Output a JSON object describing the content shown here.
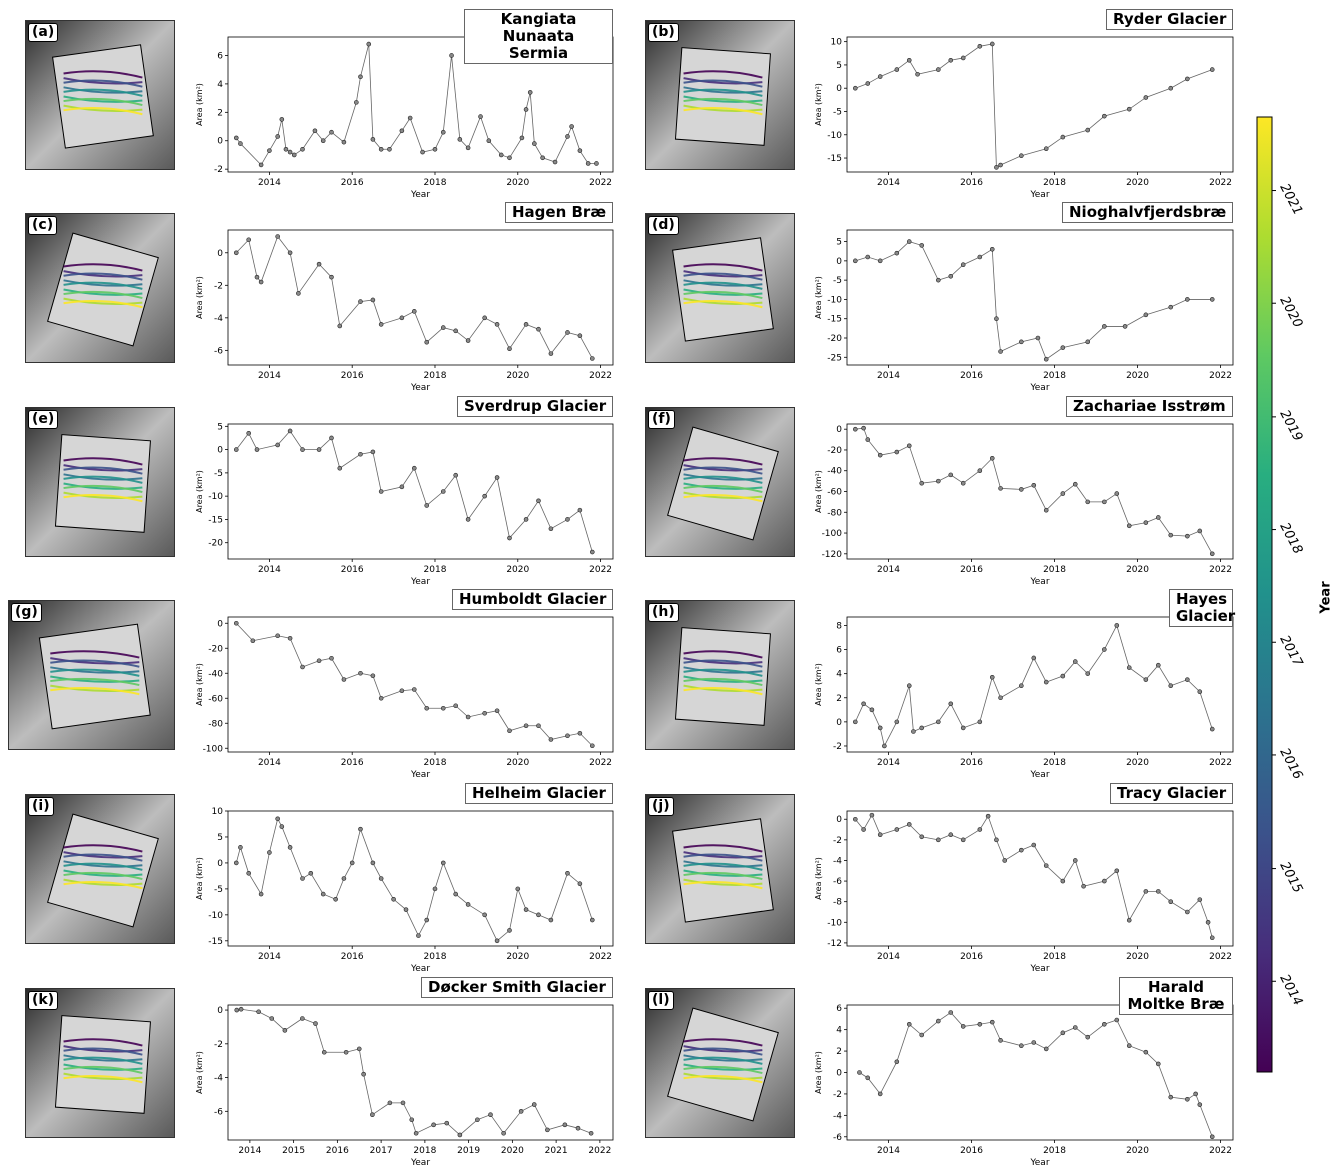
{
  "colorbar": {
    "label": "Year",
    "ticks": [
      "2014",
      "2015",
      "2016",
      "2017",
      "2018",
      "2019",
      "2020",
      "2021"
    ],
    "colors": [
      "#440154",
      "#472d7b",
      "#3b528b",
      "#2c728e",
      "#21918c",
      "#28ae80",
      "#5ec962",
      "#addc30",
      "#fde725"
    ]
  },
  "common": {
    "xlabel": "Year",
    "ylabel": "Area (km²)"
  },
  "chart_data": [
    {
      "letter": "(a)",
      "title": "Kangiata Nunaata Sermia",
      "type": "line",
      "xlim": [
        2013.0,
        2022.3
      ],
      "ylim": [
        -2.2,
        7.3
      ],
      "yticks": [
        -2,
        0,
        2,
        4,
        6
      ],
      "xticks": [
        2014,
        2016,
        2018,
        2020,
        2022
      ],
      "x": [
        2013.2,
        2013.3,
        2013.8,
        2014.0,
        2014.2,
        2014.3,
        2014.4,
        2014.5,
        2014.6,
        2014.8,
        2015.1,
        2015.3,
        2015.5,
        2015.8,
        2016.1,
        2016.2,
        2016.4,
        2016.5,
        2016.7,
        2016.9,
        2017.2,
        2017.4,
        2017.7,
        2018.0,
        2018.2,
        2018.4,
        2018.6,
        2018.8,
        2019.1,
        2019.3,
        2019.6,
        2019.8,
        2020.1,
        2020.2,
        2020.3,
        2020.4,
        2020.6,
        2020.9,
        2021.2,
        2021.3,
        2021.5,
        2021.7,
        2021.9
      ],
      "y": [
        0.2,
        -0.2,
        -1.7,
        -0.7,
        0.3,
        1.5,
        -0.6,
        -0.8,
        -1.0,
        -0.6,
        0.7,
        0.0,
        0.6,
        -0.1,
        2.7,
        4.5,
        6.8,
        0.1,
        -0.6,
        -0.6,
        0.7,
        1.6,
        -0.8,
        -0.6,
        0.6,
        6.0,
        0.1,
        -0.5,
        1.7,
        0.0,
        -1.0,
        -1.2,
        0.2,
        2.2,
        3.4,
        -0.2,
        -1.2,
        -1.5,
        0.3,
        1.0,
        -0.7,
        -1.6,
        -1.6
      ]
    },
    {
      "letter": "(b)",
      "title": "Ryder Glacier",
      "type": "line",
      "xlim": [
        2013.0,
        2022.3
      ],
      "ylim": [
        -18,
        11
      ],
      "yticks": [
        -15,
        -10,
        -5,
        0,
        5,
        10
      ],
      "xticks": [
        2014,
        2016,
        2018,
        2020,
        2022
      ],
      "x": [
        2013.2,
        2013.5,
        2013.8,
        2014.2,
        2014.5,
        2014.7,
        2015.2,
        2015.5,
        2015.8,
        2016.2,
        2016.5,
        2016.6,
        2016.7,
        2017.2,
        2017.8,
        2018.2,
        2018.8,
        2019.2,
        2019.8,
        2020.2,
        2020.8,
        2021.2,
        2021.8
      ],
      "y": [
        0,
        1,
        2.5,
        4,
        6,
        3,
        4,
        6,
        6.5,
        9,
        9.5,
        -17,
        -16.5,
        -14.5,
        -13,
        -10.5,
        -9,
        -6,
        -4.5,
        -2,
        0,
        2,
        4
      ]
    },
    {
      "letter": "(c)",
      "title": "Hagen Bræ",
      "type": "line",
      "xlim": [
        2013.0,
        2022.3
      ],
      "ylim": [
        -6.9,
        1.4
      ],
      "yticks": [
        -6,
        -4,
        -2,
        0
      ],
      "xticks": [
        2014,
        2016,
        2018,
        2020,
        2022
      ],
      "x": [
        2013.2,
        2013.5,
        2013.7,
        2013.8,
        2014.2,
        2014.5,
        2014.7,
        2015.2,
        2015.5,
        2015.7,
        2016.2,
        2016.5,
        2016.7,
        2017.2,
        2017.5,
        2017.8,
        2018.2,
        2018.5,
        2018.8,
        2019.2,
        2019.5,
        2019.8,
        2020.2,
        2020.5,
        2020.8,
        2021.2,
        2021.5,
        2021.8
      ],
      "y": [
        0,
        0.8,
        -1.5,
        -1.8,
        1,
        0,
        -2.5,
        -0.7,
        -1.5,
        -4.5,
        -3,
        -2.9,
        -4.4,
        -4.0,
        -3.6,
        -5.5,
        -4.6,
        -4.8,
        -5.4,
        -4.0,
        -4.4,
        -5.9,
        -4.4,
        -4.7,
        -6.2,
        -4.9,
        -5.1,
        -6.5
      ]
    },
    {
      "letter": "(d)",
      "title": "Nioghalvfjerdsbræ",
      "type": "line",
      "xlim": [
        2013.0,
        2022.3
      ],
      "ylim": [
        -27,
        8
      ],
      "yticks": [
        -25,
        -20,
        -15,
        -10,
        -5,
        0,
        5
      ],
      "xticks": [
        2014,
        2016,
        2018,
        2020,
        2022
      ],
      "x": [
        2013.2,
        2013.5,
        2013.8,
        2014.2,
        2014.5,
        2014.8,
        2015.2,
        2015.5,
        2015.8,
        2016.2,
        2016.5,
        2016.6,
        2016.7,
        2017.2,
        2017.6,
        2017.8,
        2018.2,
        2018.8,
        2019.2,
        2019.7,
        2020.2,
        2020.8,
        2021.2,
        2021.8
      ],
      "y": [
        0,
        1,
        0,
        2,
        5,
        4,
        -5,
        -4,
        -1,
        1,
        3,
        -15,
        -23.5,
        -21,
        -20,
        -25.5,
        -22.5,
        -21,
        -17,
        -17,
        -14,
        -12,
        -10,
        -10
      ]
    },
    {
      "letter": "(e)",
      "title": "Sverdrup Glacier",
      "type": "line",
      "xlim": [
        2013.0,
        2022.3
      ],
      "ylim": [
        -23.5,
        5.5
      ],
      "yticks": [
        -20,
        -15,
        -10,
        -5,
        0,
        5
      ],
      "xticks": [
        2014,
        2016,
        2018,
        2020,
        2022
      ],
      "x": [
        2013.2,
        2013.5,
        2013.7,
        2014.2,
        2014.5,
        2014.8,
        2015.2,
        2015.5,
        2015.7,
        2016.2,
        2016.5,
        2016.7,
        2017.2,
        2017.5,
        2017.8,
        2018.2,
        2018.5,
        2018.8,
        2019.2,
        2019.5,
        2019.8,
        2020.2,
        2020.5,
        2020.8,
        2021.2,
        2021.5,
        2021.8
      ],
      "y": [
        0,
        3.5,
        0,
        1,
        4,
        0,
        0,
        2.5,
        -4,
        -1,
        -0.5,
        -9,
        -8,
        -4,
        -12,
        -9,
        -5.5,
        -15,
        -10,
        -6,
        -19,
        -15,
        -11,
        -17,
        -15,
        -13,
        -22
      ]
    },
    {
      "letter": "(f)",
      "title": "Zachariae Isstrøm",
      "type": "line",
      "xlim": [
        2013.0,
        2022.3
      ],
      "ylim": [
        -125,
        5
      ],
      "yticks": [
        -120,
        -100,
        -80,
        -60,
        -40,
        -20,
        0
      ],
      "xticks": [
        2014,
        2016,
        2018,
        2020,
        2022
      ],
      "x": [
        2013.2,
        2013.4,
        2013.5,
        2013.8,
        2014.2,
        2014.5,
        2014.8,
        2015.2,
        2015.5,
        2015.8,
        2016.2,
        2016.5,
        2016.7,
        2017.2,
        2017.5,
        2017.8,
        2018.2,
        2018.5,
        2018.8,
        2019.2,
        2019.5,
        2019.8,
        2020.2,
        2020.5,
        2020.8,
        2021.2,
        2021.5,
        2021.8
      ],
      "y": [
        0,
        1,
        -10,
        -25,
        -22,
        -16,
        -52,
        -50,
        -44,
        -52,
        -40,
        -28,
        -57,
        -58,
        -54,
        -78,
        -62,
        -53,
        -70,
        -70,
        -62,
        -93,
        -90,
        -85,
        -102,
        -103,
        -98,
        -120
      ]
    },
    {
      "letter": "(g)",
      "title": "Humboldt Glacier",
      "type": "line",
      "xlim": [
        2013.0,
        2022.3
      ],
      "ylim": [
        -103,
        5
      ],
      "yticks": [
        -100,
        -80,
        -60,
        -40,
        -20,
        0
      ],
      "xticks": [
        2014,
        2016,
        2018,
        2020,
        2022
      ],
      "x": [
        2013.2,
        2013.6,
        2014.2,
        2014.5,
        2014.8,
        2015.2,
        2015.5,
        2015.8,
        2016.2,
        2016.5,
        2016.7,
        2017.2,
        2017.5,
        2017.8,
        2018.2,
        2018.5,
        2018.8,
        2019.2,
        2019.5,
        2019.8,
        2020.2,
        2020.5,
        2020.8,
        2021.2,
        2021.5,
        2021.8
      ],
      "y": [
        0,
        -14,
        -10,
        -12,
        -35,
        -30,
        -28,
        -45,
        -40,
        -42,
        -60,
        -54,
        -53,
        -68,
        -68,
        -66,
        -75,
        -72,
        -70,
        -86,
        -82,
        -82,
        -93,
        -90,
        -88,
        -98
      ]
    },
    {
      "letter": "(h)",
      "title": "Hayes Glacier",
      "type": "line",
      "xlim": [
        2013.0,
        2022.3
      ],
      "ylim": [
        -2.5,
        8.7
      ],
      "yticks": [
        -2,
        0,
        2,
        4,
        6,
        8
      ],
      "xticks": [
        2014,
        2016,
        2018,
        2020,
        2022
      ],
      "x": [
        2013.2,
        2013.4,
        2013.6,
        2013.8,
        2013.9,
        2014.2,
        2014.5,
        2014.6,
        2014.8,
        2015.2,
        2015.5,
        2015.8,
        2016.2,
        2016.5,
        2016.7,
        2017.2,
        2017.5,
        2017.8,
        2018.2,
        2018.5,
        2018.8,
        2019.2,
        2019.5,
        2019.8,
        2020.2,
        2020.5,
        2020.8,
        2021.2,
        2021.5,
        2021.8
      ],
      "y": [
        0,
        1.5,
        1,
        -0.5,
        -2,
        0,
        3,
        -0.8,
        -0.5,
        0,
        1.5,
        -0.5,
        0,
        3.7,
        2,
        3,
        5.3,
        3.3,
        3.8,
        5,
        4,
        6,
        8,
        4.5,
        3.5,
        4.7,
        3,
        3.5,
        2.5,
        -0.6
      ]
    },
    {
      "letter": "(i)",
      "title": "Helheim Glacier",
      "type": "line",
      "xlim": [
        2013.0,
        2022.3
      ],
      "ylim": [
        -16,
        10
      ],
      "yticks": [
        -15,
        -10,
        -5,
        0,
        5,
        10
      ],
      "xticks": [
        2014,
        2016,
        2018,
        2020,
        2022
      ],
      "x": [
        2013.2,
        2013.3,
        2013.5,
        2013.8,
        2014.0,
        2014.2,
        2014.3,
        2014.5,
        2014.8,
        2015.0,
        2015.3,
        2015.6,
        2015.8,
        2016.0,
        2016.2,
        2016.5,
        2016.7,
        2017.0,
        2017.3,
        2017.6,
        2017.8,
        2018.0,
        2018.2,
        2018.5,
        2018.8,
        2019.2,
        2019.5,
        2019.8,
        2020.0,
        2020.2,
        2020.5,
        2020.8,
        2021.2,
        2021.5,
        2021.8
      ],
      "y": [
        0,
        3,
        -2,
        -6,
        2,
        8.5,
        7,
        3,
        -3,
        -2,
        -6,
        -7,
        -3,
        0,
        6.5,
        0,
        -3,
        -7,
        -9,
        -14,
        -11,
        -5,
        0,
        -6,
        -8,
        -10,
        -15,
        -13,
        -5,
        -9,
        -10,
        -11,
        -2,
        -4,
        -11
      ]
    },
    {
      "letter": "(j)",
      "title": "Tracy Glacier",
      "type": "line",
      "xlim": [
        2013.0,
        2022.3
      ],
      "ylim": [
        -12.3,
        0.8
      ],
      "yticks": [
        -12,
        -10,
        -8,
        -6,
        -4,
        -2,
        0
      ],
      "xticks": [
        2014,
        2016,
        2018,
        2020,
        2022
      ],
      "x": [
        2013.2,
        2013.4,
        2013.6,
        2013.8,
        2014.2,
        2014.5,
        2014.8,
        2015.2,
        2015.5,
        2015.8,
        2016.2,
        2016.4,
        2016.6,
        2016.8,
        2017.2,
        2017.5,
        2017.8,
        2018.2,
        2018.5,
        2018.7,
        2019.2,
        2019.5,
        2019.8,
        2020.2,
        2020.5,
        2020.8,
        2021.2,
        2021.5,
        2021.7,
        2021.8
      ],
      "y": [
        0,
        -1,
        0.4,
        -1.5,
        -1,
        -0.5,
        -1.7,
        -2,
        -1.5,
        -2,
        -1,
        0.3,
        -2,
        -4,
        -3,
        -2.5,
        -4.5,
        -6,
        -4,
        -6.5,
        -6,
        -5,
        -9.8,
        -7,
        -7,
        -8,
        -9,
        -7.8,
        -10,
        -11.5
      ]
    },
    {
      "letter": "(k)",
      "title": "Døcker Smith Glacier",
      "type": "line",
      "xlim": [
        2013.5,
        2022.3
      ],
      "ylim": [
        -7.7,
        0.3
      ],
      "yticks": [
        -6,
        -4,
        -2,
        0
      ],
      "xticks": [
        2014,
        2015,
        2016,
        2017,
        2018,
        2019,
        2020,
        2021,
        2022
      ],
      "x": [
        2013.7,
        2013.8,
        2014.2,
        2014.5,
        2014.8,
        2015.2,
        2015.5,
        2015.7,
        2016.2,
        2016.5,
        2016.6,
        2016.8,
        2017.2,
        2017.5,
        2017.7,
        2017.8,
        2018.2,
        2018.5,
        2018.8,
        2019.2,
        2019.5,
        2019.8,
        2020.2,
        2020.5,
        2020.8,
        2021.2,
        2021.5,
        2021.8
      ],
      "y": [
        0,
        0.05,
        -0.1,
        -0.5,
        -1.2,
        -0.5,
        -0.8,
        -2.5,
        -2.5,
        -2.3,
        -3.8,
        -6.2,
        -5.5,
        -5.5,
        -6.5,
        -7.3,
        -6.8,
        -6.7,
        -7.4,
        -6.5,
        -6.2,
        -7.3,
        -6,
        -5.6,
        -7.1,
        -6.8,
        -7,
        -7.3
      ]
    },
    {
      "letter": "(l)",
      "title": "Harald Moltke Bræ",
      "type": "line",
      "xlim": [
        2013.0,
        2022.3
      ],
      "ylim": [
        -6.3,
        6.3
      ],
      "yticks": [
        -6,
        -4,
        -2,
        0,
        2,
        4,
        6
      ],
      "xticks": [
        2014,
        2016,
        2018,
        2020,
        2022
      ],
      "x": [
        2013.3,
        2013.5,
        2013.8,
        2014.2,
        2014.5,
        2014.8,
        2015.2,
        2015.5,
        2015.8,
        2016.2,
        2016.5,
        2016.7,
        2017.2,
        2017.5,
        2017.8,
        2018.2,
        2018.5,
        2018.8,
        2019.2,
        2019.5,
        2019.8,
        2020.2,
        2020.5,
        2020.8,
        2021.2,
        2021.4,
        2021.5,
        2021.8
      ],
      "y": [
        0,
        -0.5,
        -2,
        1,
        4.5,
        3.5,
        4.8,
        5.6,
        4.3,
        4.5,
        4.7,
        3,
        2.5,
        2.8,
        2.2,
        3.7,
        4.2,
        3.3,
        4.5,
        4.9,
        2.5,
        1.9,
        0.8,
        -2.3,
        -2.5,
        -2,
        -3,
        -6
      ]
    }
  ]
}
